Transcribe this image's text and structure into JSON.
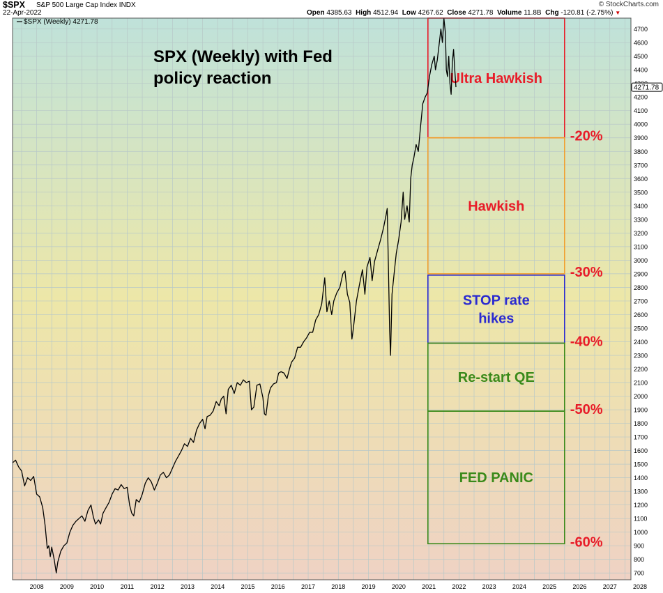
{
  "header": {
    "symbol": "$SPX",
    "name": "S&P 500 Large Cap Index INDX",
    "date": "22-Apr-2022",
    "brand": "© StockCharts.com",
    "open_label": "Open",
    "open": "4385.63",
    "high_label": "High",
    "high": "4512.94",
    "low_label": "Low",
    "low": "4267.62",
    "close_label": "Close",
    "close": "4271.78",
    "volume_label": "Volume",
    "volume": "11.8B",
    "chg_label": "Chg",
    "chg": "-120.81 (-2.75%)",
    "down_indicator": "▼"
  },
  "chart_data": {
    "type": "line",
    "legend": "$SPX (Weekly) 4271.78",
    "annotation_title_line1": "SPX (Weekly) with Fed",
    "annotation_title_line2": "policy reaction",
    "last_value_label": "4271.78",
    "x_ticks": [
      "2008",
      "2009",
      "2010",
      "2011",
      "2012",
      "2013",
      "2014",
      "2015",
      "2016",
      "2017",
      "2018",
      "2019",
      "2020",
      "2021",
      "2022",
      "2023",
      "2024",
      "2025",
      "2026",
      "2027",
      "2028"
    ],
    "y_ticks": [
      700,
      800,
      900,
      1000,
      1100,
      1200,
      1300,
      1400,
      1500,
      1600,
      1700,
      1800,
      1900,
      2000,
      2100,
      2200,
      2300,
      2400,
      2500,
      2600,
      2700,
      2800,
      2900,
      3000,
      3100,
      3200,
      3300,
      3400,
      3500,
      3600,
      3700,
      3800,
      3900,
      4000,
      4100,
      4200,
      4300,
      4400,
      4500,
      4600,
      4700
    ],
    "xlim": [
      2007.7,
      2028.2
    ],
    "ylim": [
      650,
      4780
    ],
    "grid": true,
    "series": [
      {
        "values": [
          [
            2007.7,
            1510
          ],
          [
            2007.8,
            1530
          ],
          [
            2007.9,
            1480
          ],
          [
            2008.0,
            1450
          ],
          [
            2008.1,
            1340
          ],
          [
            2008.2,
            1400
          ],
          [
            2008.3,
            1380
          ],
          [
            2008.4,
            1410
          ],
          [
            2008.5,
            1280
          ],
          [
            2008.6,
            1260
          ],
          [
            2008.7,
            1180
          ],
          [
            2008.78,
            1050
          ],
          [
            2008.85,
            880
          ],
          [
            2008.9,
            900
          ],
          [
            2008.95,
            820
          ],
          [
            2009.0,
            890
          ],
          [
            2009.08,
            800
          ],
          [
            2009.15,
            700
          ],
          [
            2009.2,
            780
          ],
          [
            2009.3,
            860
          ],
          [
            2009.4,
            900
          ],
          [
            2009.5,
            920
          ],
          [
            2009.6,
            1000
          ],
          [
            2009.7,
            1050
          ],
          [
            2009.8,
            1080
          ],
          [
            2009.9,
            1100
          ],
          [
            2010.0,
            1120
          ],
          [
            2010.1,
            1080
          ],
          [
            2010.2,
            1160
          ],
          [
            2010.3,
            1200
          ],
          [
            2010.38,
            1110
          ],
          [
            2010.45,
            1060
          ],
          [
            2010.55,
            1090
          ],
          [
            2010.62,
            1060
          ],
          [
            2010.7,
            1140
          ],
          [
            2010.8,
            1180
          ],
          [
            2010.9,
            1220
          ],
          [
            2011.0,
            1280
          ],
          [
            2011.1,
            1320
          ],
          [
            2011.2,
            1310
          ],
          [
            2011.3,
            1350
          ],
          [
            2011.4,
            1320
          ],
          [
            2011.5,
            1330
          ],
          [
            2011.58,
            1200
          ],
          [
            2011.65,
            1140
          ],
          [
            2011.72,
            1120
          ],
          [
            2011.8,
            1240
          ],
          [
            2011.9,
            1220
          ],
          [
            2012.0,
            1280
          ],
          [
            2012.1,
            1360
          ],
          [
            2012.2,
            1400
          ],
          [
            2012.3,
            1370
          ],
          [
            2012.4,
            1310
          ],
          [
            2012.5,
            1360
          ],
          [
            2012.6,
            1420
          ],
          [
            2012.7,
            1440
          ],
          [
            2012.8,
            1400
          ],
          [
            2012.9,
            1420
          ],
          [
            2013.0,
            1470
          ],
          [
            2013.1,
            1520
          ],
          [
            2013.2,
            1560
          ],
          [
            2013.3,
            1600
          ],
          [
            2013.4,
            1650
          ],
          [
            2013.5,
            1630
          ],
          [
            2013.6,
            1690
          ],
          [
            2013.7,
            1660
          ],
          [
            2013.8,
            1750
          ],
          [
            2013.9,
            1800
          ],
          [
            2014.0,
            1830
          ],
          [
            2014.08,
            1760
          ],
          [
            2014.15,
            1850
          ],
          [
            2014.25,
            1860
          ],
          [
            2014.35,
            1890
          ],
          [
            2014.45,
            1960
          ],
          [
            2014.55,
            1930
          ],
          [
            2014.62,
            1980
          ],
          [
            2014.7,
            2000
          ],
          [
            2014.78,
            1870
          ],
          [
            2014.85,
            2050
          ],
          [
            2014.95,
            2080
          ],
          [
            2015.05,
            2020
          ],
          [
            2015.15,
            2100
          ],
          [
            2015.25,
            2080
          ],
          [
            2015.35,
            2120
          ],
          [
            2015.45,
            2100
          ],
          [
            2015.55,
            2110
          ],
          [
            2015.62,
            1900
          ],
          [
            2015.7,
            1920
          ],
          [
            2015.8,
            2080
          ],
          [
            2015.9,
            2090
          ],
          [
            2016.0,
            1990
          ],
          [
            2016.05,
            1870
          ],
          [
            2016.1,
            1860
          ],
          [
            2016.18,
            2000
          ],
          [
            2016.25,
            2060
          ],
          [
            2016.35,
            2090
          ],
          [
            2016.45,
            2100
          ],
          [
            2016.52,
            2170
          ],
          [
            2016.6,
            2180
          ],
          [
            2016.7,
            2170
          ],
          [
            2016.8,
            2130
          ],
          [
            2016.88,
            2200
          ],
          [
            2016.95,
            2250
          ],
          [
            2017.05,
            2280
          ],
          [
            2017.15,
            2360
          ],
          [
            2017.25,
            2360
          ],
          [
            2017.35,
            2400
          ],
          [
            2017.45,
            2430
          ],
          [
            2017.55,
            2470
          ],
          [
            2017.65,
            2470
          ],
          [
            2017.75,
            2560
          ],
          [
            2017.85,
            2600
          ],
          [
            2017.95,
            2680
          ],
          [
            2018.05,
            2870
          ],
          [
            2018.12,
            2620
          ],
          [
            2018.2,
            2700
          ],
          [
            2018.28,
            2600
          ],
          [
            2018.35,
            2700
          ],
          [
            2018.45,
            2760
          ],
          [
            2018.55,
            2800
          ],
          [
            2018.65,
            2900
          ],
          [
            2018.72,
            2920
          ],
          [
            2018.8,
            2750
          ],
          [
            2018.88,
            2690
          ],
          [
            2018.95,
            2420
          ],
          [
            2019.0,
            2500
          ],
          [
            2019.1,
            2700
          ],
          [
            2019.2,
            2820
          ],
          [
            2019.3,
            2930
          ],
          [
            2019.38,
            2750
          ],
          [
            2019.45,
            2950
          ],
          [
            2019.55,
            3020
          ],
          [
            2019.62,
            2850
          ],
          [
            2019.7,
            2990
          ],
          [
            2019.8,
            3070
          ],
          [
            2019.9,
            3150
          ],
          [
            2020.0,
            3240
          ],
          [
            2020.08,
            3330
          ],
          [
            2020.12,
            3380
          ],
          [
            2020.16,
            2960
          ],
          [
            2020.2,
            2480
          ],
          [
            2020.23,
            2300
          ],
          [
            2020.28,
            2750
          ],
          [
            2020.35,
            2900
          ],
          [
            2020.42,
            3050
          ],
          [
            2020.5,
            3150
          ],
          [
            2020.58,
            3280
          ],
          [
            2020.65,
            3500
          ],
          [
            2020.7,
            3300
          ],
          [
            2020.78,
            3400
          ],
          [
            2020.85,
            3280
          ],
          [
            2020.9,
            3600
          ],
          [
            2020.95,
            3700
          ],
          [
            2021.0,
            3750
          ],
          [
            2021.08,
            3850
          ],
          [
            2021.15,
            3800
          ],
          [
            2021.22,
            3970
          ],
          [
            2021.3,
            4150
          ],
          [
            2021.38,
            4200
          ],
          [
            2021.45,
            4230
          ],
          [
            2021.52,
            4350
          ],
          [
            2021.6,
            4440
          ],
          [
            2021.68,
            4500
          ],
          [
            2021.72,
            4400
          ],
          [
            2021.78,
            4470
          ],
          [
            2021.85,
            4600
          ],
          [
            2021.9,
            4700
          ],
          [
            2021.95,
            4600
          ],
          [
            2022.0,
            4780
          ],
          [
            2022.05,
            4670
          ],
          [
            2022.08,
            4400
          ],
          [
            2022.12,
            4350
          ],
          [
            2022.16,
            4500
          ],
          [
            2022.2,
            4300
          ],
          [
            2022.24,
            4220
          ],
          [
            2022.28,
            4460
          ],
          [
            2022.32,
            4550
          ],
          [
            2022.36,
            4400
          ],
          [
            2022.4,
            4272
          ]
        ]
      }
    ],
    "zones": [
      {
        "label_line1": "Ultra Hawkish",
        "label_line2": "",
        "color": "#e81c28",
        "text_color": "#e81c28",
        "y_top": 4780,
        "y_bottom": 3900,
        "pct_label": "-20%"
      },
      {
        "label_line1": "Hawkish",
        "label_line2": "",
        "color": "#f0a030",
        "text_color": "#e81c28",
        "y_top": 3900,
        "y_bottom": 2900,
        "pct_label": "-30%"
      },
      {
        "label_line1": "STOP rate",
        "label_line2": "hikes",
        "color": "#2a2ad0",
        "text_color": "#2a2ad0",
        "y_top": 2890,
        "y_bottom": 2390,
        "pct_label": "-40%"
      },
      {
        "label_line1": "Re-start QE",
        "label_line2": "",
        "color": "#3a8a1a",
        "text_color": "#3a8a1a",
        "y_top": 2390,
        "y_bottom": 1890,
        "pct_label": "-50%"
      },
      {
        "label_line1": "FED PANIC",
        "label_line2": "",
        "color": "#3a8a1a",
        "text_color": "#3a8a1a",
        "y_top": 1890,
        "y_bottom": 915,
        "pct_label": "-60%"
      }
    ],
    "colors": {
      "line": "#000000",
      "grid": "#b8c8c8",
      "pct": "#e81c28",
      "bg_top": "#bfe2da",
      "bg_mid": "#ede7a8",
      "bg_bottom": "#efd2c4"
    }
  }
}
